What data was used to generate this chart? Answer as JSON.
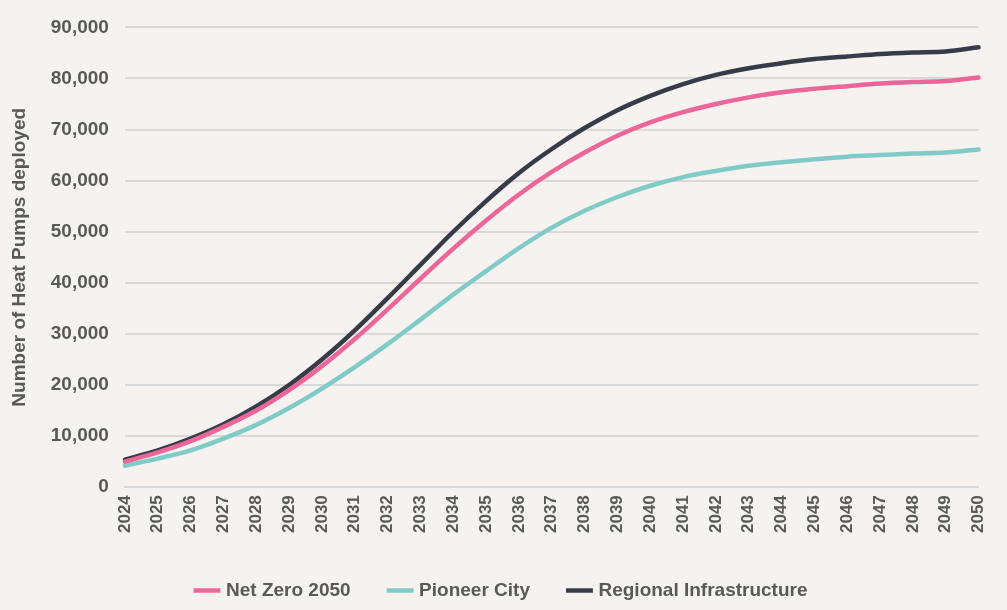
{
  "chart_data": {
    "type": "line",
    "ylabel": "Number of Heat Pumps deployed",
    "categories": [
      "2024",
      "2025",
      "2026",
      "2027",
      "2028",
      "2029",
      "2030",
      "2031",
      "2032",
      "2033",
      "2034",
      "2035",
      "2036",
      "2037",
      "2038",
      "2039",
      "2040",
      "2041",
      "2042",
      "2043",
      "2044",
      "2045",
      "2046",
      "2047",
      "2048",
      "2049",
      "2050"
    ],
    "series": [
      {
        "name": "Net Zero 2050",
        "color": "#ec6699",
        "values": [
          5000,
          6800,
          9000,
          11800,
          15000,
          19000,
          23700,
          29000,
          34800,
          40800,
          46700,
          52200,
          57300,
          61700,
          65500,
          68800,
          71400,
          73400,
          75000,
          76300,
          77300,
          78000,
          78500,
          79000,
          79300,
          79500,
          80200
        ]
      },
      {
        "name": "Pioneer City",
        "color": "#80cbc8",
        "values": [
          4200,
          5600,
          7200,
          9500,
          12200,
          15500,
          19300,
          23500,
          28000,
          32800,
          37700,
          42300,
          46800,
          50800,
          54100,
          56800,
          59000,
          60700,
          61900,
          62900,
          63600,
          64200,
          64700,
          65000,
          65300,
          65500,
          66100
        ]
      },
      {
        "name": "Regional Infrastructure",
        "color": "#363b47",
        "values": [
          5400,
          7200,
          9500,
          12300,
          15800,
          20000,
          25000,
          30700,
          37000,
          43500,
          50000,
          56000,
          61500,
          66200,
          70300,
          73800,
          76600,
          78900,
          80700,
          82000,
          83000,
          83800,
          84300,
          84800,
          85100,
          85300,
          86100
        ]
      }
    ],
    "ylim": [
      0,
      90000
    ],
    "yticks": [
      {
        "value": 0,
        "label": "0"
      },
      {
        "value": 10000,
        "label": "10,000"
      },
      {
        "value": 20000,
        "label": "20,000"
      },
      {
        "value": 30000,
        "label": "30,000"
      },
      {
        "value": 40000,
        "label": "40,000"
      },
      {
        "value": 50000,
        "label": "50,000"
      },
      {
        "value": 60000,
        "label": "60,000"
      },
      {
        "value": 70000,
        "label": "70,000"
      },
      {
        "value": 80000,
        "label": "80,000"
      },
      {
        "value": 90000,
        "label": "90,000"
      }
    ],
    "grid": "y",
    "legend": "bottom",
    "marker": "none",
    "line_style": "solid"
  }
}
